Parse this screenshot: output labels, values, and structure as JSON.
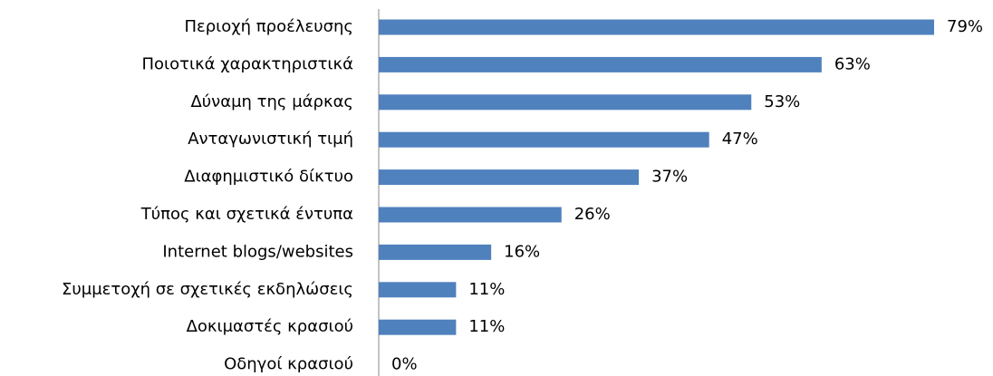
{
  "chart_data": {
    "type": "bar",
    "orientation": "horizontal",
    "categories": [
      "Περιοχή προέλευσης",
      "Ποιοτικά χαρακτηριστικά",
      "Δύναμη της μάρκας",
      "Ανταγωνιστική τιμή",
      "Διαφημιστικό δίκτυο",
      "Τύπος και σχετικά έντυπα",
      "Internet blogs/websites",
      "Συμμετοχή σε σχετικές εκδηλώσεις",
      "Δοκιμαστές κρασιού",
      "Οδηγοί κρασιού"
    ],
    "values": [
      79,
      63,
      53,
      47,
      37,
      26,
      16,
      11,
      11,
      0
    ],
    "value_labels": [
      "79%",
      "63%",
      "53%",
      "47%",
      "37%",
      "26%",
      "16%",
      "11%",
      "11%",
      "0%"
    ],
    "color": "#4f81bd"
  }
}
